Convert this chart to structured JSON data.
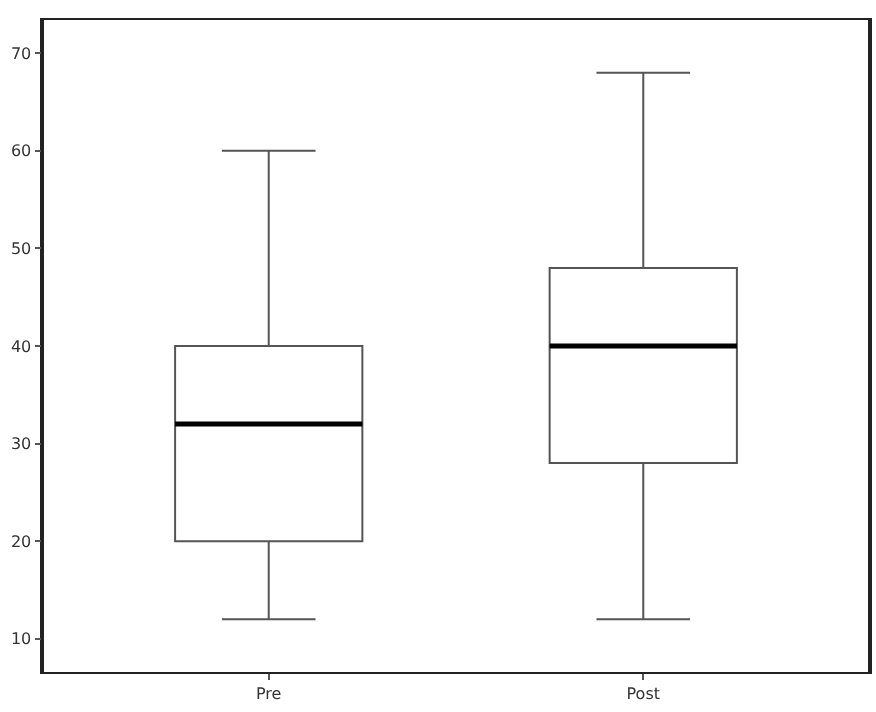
{
  "chart_data": {
    "type": "box",
    "categories": [
      "Pre",
      "Post"
    ],
    "boxes": [
      {
        "low": 12,
        "q1": 20,
        "median": 32,
        "q3": 40,
        "high": 60
      },
      {
        "low": 12,
        "q1": 28,
        "median": 40,
        "q3": 48,
        "high": 68
      }
    ],
    "ylim": [
      6.6,
      73.4
    ],
    "yticks": [
      10,
      20,
      30,
      40,
      50,
      60,
      70
    ],
    "grid": false,
    "legend": false
  }
}
